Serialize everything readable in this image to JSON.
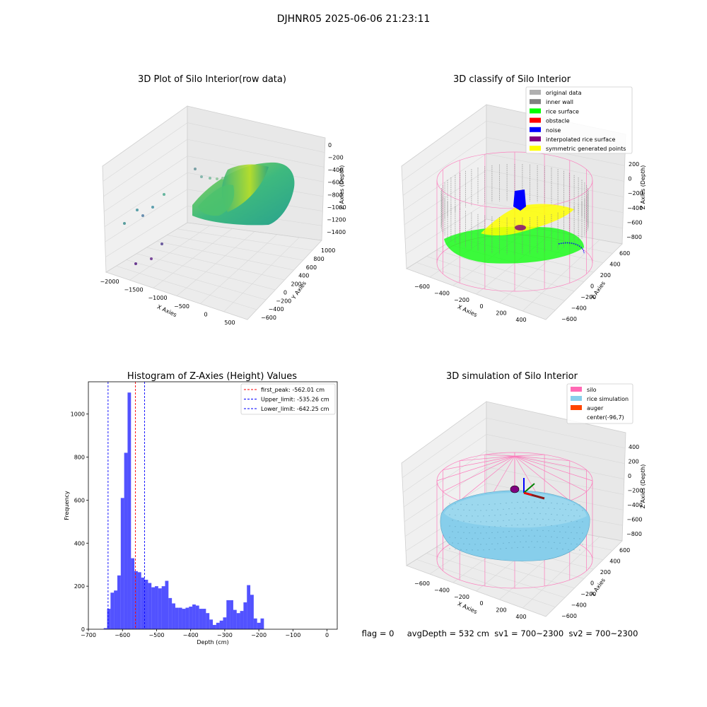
{
  "figure": {
    "title": "DJHNR05 2025-06-06 21:23:11",
    "status_line": "flag = 0     avgDepth = 532 cm  sv1 = 700~2300  sv2 = 700~2300"
  },
  "colors": {
    "hist_bar": "#0000ff",
    "first_peak": "#ff0000",
    "limits": "#0000ff",
    "silo": "#ff69b4",
    "rice_simulation": "#87ceeb",
    "auger": "#ff4500",
    "original": "#b0b0b0",
    "inner_wall": "#808080",
    "rice_surface": "#00ff00",
    "obstacle": "#ff0000",
    "noise": "#0000ff",
    "interpolated": "#800080",
    "symmetric": "#ffff00"
  },
  "chart_data": [
    {
      "type": "scatter",
      "title": "3D Plot of Silo Interior(row data)",
      "xlabel": "X Axies",
      "ylabel": "Y Axies",
      "zlabel": "Z Axies (Depth)",
      "x_ticks": [
        "−2000",
        "−1500",
        "−1000",
        "−500",
        "0",
        "500"
      ],
      "y_ticks": [
        "−600",
        "−400",
        "−200",
        "0",
        "200",
        "400",
        "600",
        "800",
        "1000"
      ],
      "z_ticks": [
        "0",
        "−200",
        "−400",
        "−600",
        "−800",
        "−1000",
        "−1200",
        "−1400"
      ],
      "grid": true
    },
    {
      "type": "scatter",
      "title": "3D classify of Silo Interior",
      "xlabel": "X Axies",
      "ylabel": "Y Axies",
      "zlabel": "Z Axies (Depth)",
      "x_ticks": [
        "−600",
        "−400",
        "−200",
        "0",
        "200",
        "400"
      ],
      "y_ticks": [
        "−600",
        "−400",
        "−200",
        "0",
        "200",
        "400",
        "600"
      ],
      "z_ticks": [
        "200",
        "0",
        "−200",
        "−400",
        "−600",
        "−800"
      ],
      "legend": [
        "original data",
        "inner wall",
        "rice surface",
        "obstacle",
        "noise",
        "interpolated rice surface",
        "symmetric generated points"
      ],
      "legend_placement": "top-right",
      "grid": true
    },
    {
      "type": "bar",
      "title": "Histogram of Z-Axies (Height) Values",
      "xlabel": "Depth (cm)",
      "ylabel": "Frequency",
      "xlim": [
        -700,
        30
      ],
      "ylim": [
        0,
        1150
      ],
      "x_ticks": [
        "−700",
        "−600",
        "−500",
        "−400",
        "−300",
        "−200",
        "−100",
        "0"
      ],
      "y_ticks": [
        "0",
        "200",
        "400",
        "600",
        "800",
        "1000"
      ],
      "bin_start": -655,
      "bin_width": 10,
      "values": [
        5,
        95,
        170,
        180,
        250,
        610,
        820,
        1100,
        330,
        270,
        265,
        240,
        230,
        215,
        195,
        200,
        190,
        200,
        225,
        145,
        120,
        100,
        100,
        95,
        100,
        105,
        115,
        110,
        95,
        95,
        75,
        45,
        20,
        30,
        40,
        55,
        135,
        135,
        90,
        75,
        85,
        125,
        205,
        160,
        50,
        30,
        50
      ],
      "lines": [
        {
          "label": "first_peak: -562.01 cm",
          "x": -562.01,
          "color": "#ff0000"
        },
        {
          "label": "Upper_limit: -535.26 cm",
          "x": -535.26,
          "color": "#0000ff"
        },
        {
          "label": "Lower_limit: -642.25 cm",
          "x": -642.25,
          "color": "#0000ff"
        }
      ],
      "legend_placement": "top-right"
    },
    {
      "type": "scatter",
      "title": "3D simulation of Silo Interior",
      "xlabel": "X Axies",
      "ylabel": "Y Axies",
      "zlabel": "Z Axies (Depth)",
      "x_ticks": [
        "−600",
        "−400",
        "−200",
        "0",
        "200",
        "400"
      ],
      "y_ticks": [
        "−600",
        "−400",
        "−200",
        "0",
        "200",
        "400",
        "600"
      ],
      "z_ticks": [
        "400",
        "200",
        "0",
        "−200",
        "−400",
        "−600",
        "−800"
      ],
      "legend": [
        "silo",
        "rice simulation",
        "auger",
        "center(-96,7)"
      ],
      "legend_placement": "top-right",
      "grid": true
    }
  ]
}
